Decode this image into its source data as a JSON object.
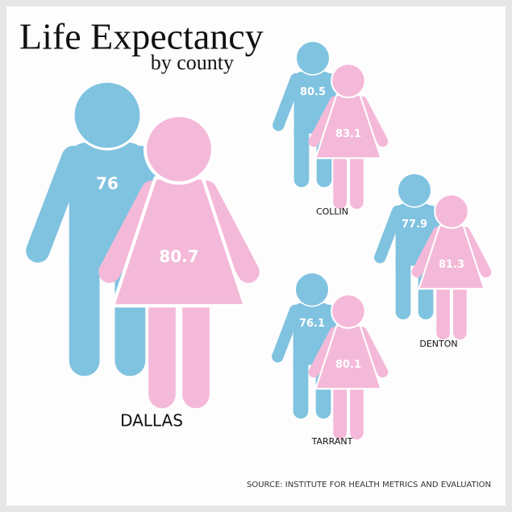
{
  "chart_data": {
    "type": "pictogram",
    "title": "Life Expectancy",
    "subtitle": "by county",
    "categories": [
      "DALLAS",
      "COLLIN",
      "DENTON",
      "TARRANT"
    ],
    "series": [
      {
        "color": "#80c3e0",
        "values": [
          76,
          80.5,
          77.9,
          76.1
        ]
      },
      {
        "color": "#f4b9d8",
        "values": [
          80.7,
          83.1,
          81.3,
          80.1
        ]
      }
    ],
    "source": "SOURCE: INSTITUTE FOR HEALTH METRICS AND EVALUATION"
  }
}
